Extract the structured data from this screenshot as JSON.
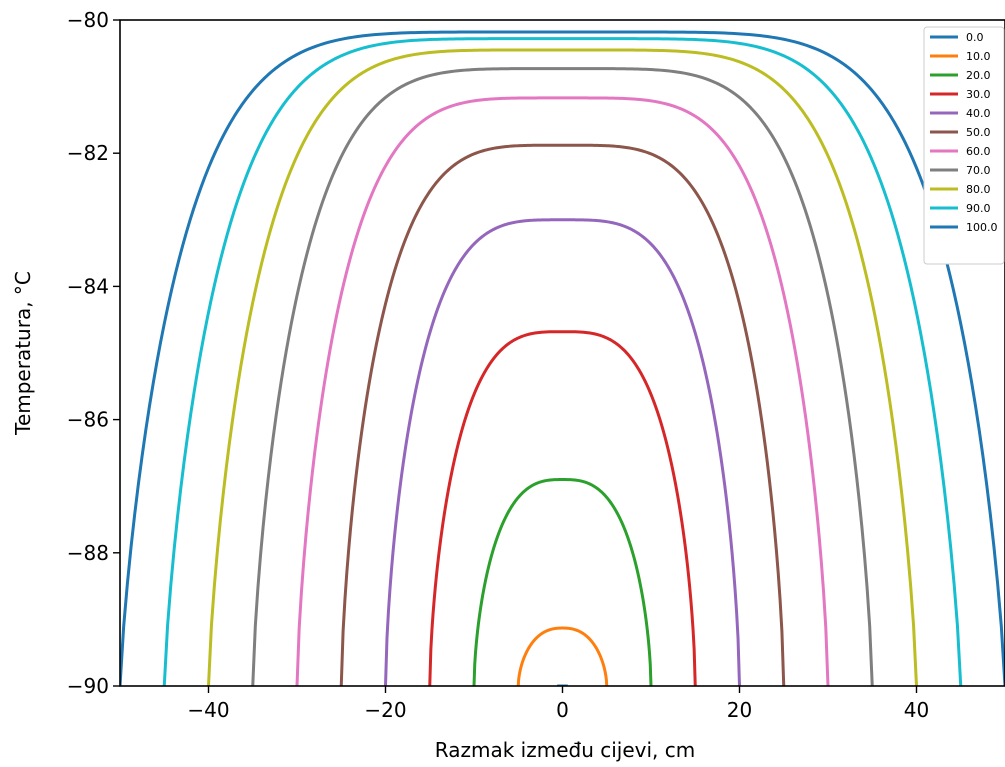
{
  "chart_data": {
    "type": "line",
    "title": "",
    "xlabel": "Razmak između cijevi, cm",
    "ylabel": "Temperatura, °C",
    "xlim": [
      -50,
      50
    ],
    "ylim": [
      -90,
      -80
    ],
    "x_ticks": [
      -40,
      -20,
      0,
      20,
      40
    ],
    "y_ticks": [
      -90,
      -88,
      -86,
      -84,
      -82,
      -80
    ],
    "x_tick_labels": [
      "−40",
      "−20",
      "0",
      "20",
      "40"
    ],
    "y_tick_labels": [
      "−90",
      "−88",
      "−86",
      "−84",
      "−82",
      "−80"
    ],
    "grid": false,
    "legend_position": "top-right",
    "curve_shape": "symmetric about x = 0; value at x = 0 is the peak; curve reaches -90 at x = ± half-width",
    "series": [
      {
        "name": "0.0",
        "color": "#1f77b4",
        "peak": -90.0,
        "half_width": 0
      },
      {
        "name": "10.0",
        "color": "#ff7f0e",
        "peak": -89.13,
        "half_width": 5
      },
      {
        "name": "20.0",
        "color": "#2ca02c",
        "peak": -86.9,
        "half_width": 10
      },
      {
        "name": "30.0",
        "color": "#d62728",
        "peak": -84.68,
        "half_width": 15
      },
      {
        "name": "40.0",
        "color": "#9467bd",
        "peak": -83.0,
        "half_width": 20
      },
      {
        "name": "50.0",
        "color": "#8c564b",
        "peak": -81.88,
        "half_width": 25
      },
      {
        "name": "60.0",
        "color": "#e377c2",
        "peak": -81.17,
        "half_width": 30
      },
      {
        "name": "70.0",
        "color": "#7f7f7f",
        "peak": -80.73,
        "half_width": 35
      },
      {
        "name": "80.0",
        "color": "#bcbd22",
        "peak": -80.45,
        "half_width": 40
      },
      {
        "name": "90.0",
        "color": "#17becf",
        "peak": -80.28,
        "half_width": 45
      },
      {
        "name": "100.0",
        "color": "#1f77b4",
        "peak": -80.18,
        "half_width": 50
      }
    ]
  }
}
